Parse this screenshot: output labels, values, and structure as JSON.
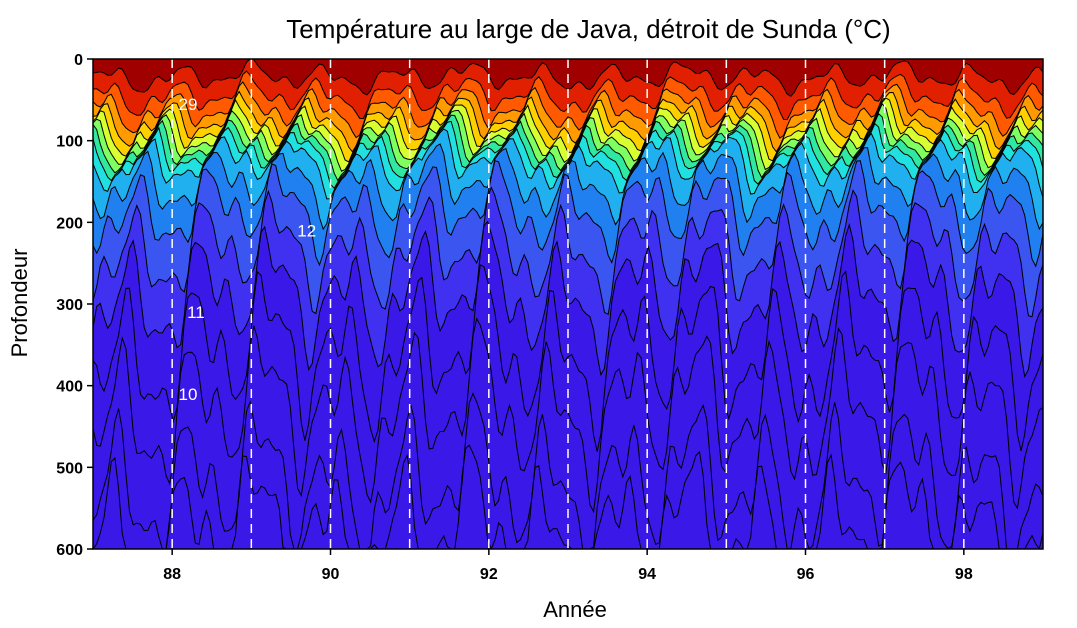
{
  "chart_data": {
    "type": "heatmap",
    "title": "Température au large de Java, détroit de Sunda (°C)",
    "xlabel": "Année",
    "ylabel": "Profondeur",
    "xlim": [
      87,
      99
    ],
    "ylim": [
      0,
      600
    ],
    "y_reversed": true,
    "x_ticks": [
      "88",
      "90",
      "92",
      "94",
      "96",
      "98"
    ],
    "x_tick_values": [
      88,
      90,
      92,
      94,
      96,
      98
    ],
    "y_ticks": [
      "0",
      "100",
      "200",
      "300",
      "400",
      "500",
      "600"
    ],
    "y_tick_values": [
      0,
      100,
      200,
      300,
      400,
      500,
      600
    ],
    "year_markers": [
      88,
      89,
      90,
      91,
      92,
      93,
      94,
      95,
      96,
      97,
      98
    ],
    "contour_labels": [
      {
        "text": "29",
        "x": 88.2,
        "depth": 55
      },
      {
        "text": "12",
        "x": 89.7,
        "depth": 210
      },
      {
        "text": "11",
        "x": 88.3,
        "depth": 310
      },
      {
        "text": "10",
        "x": 88.2,
        "depth": 410
      }
    ],
    "color_scale": [
      "#a00000",
      "#e02000",
      "#ff5a00",
      "#ff9a00",
      "#ffd000",
      "#d8ff30",
      "#80ff60",
      "#30e8a0",
      "#20e0e0",
      "#20b0f0",
      "#2080f0",
      "#3a55f0",
      "#4030f0",
      "#3a18e8"
    ]
  }
}
